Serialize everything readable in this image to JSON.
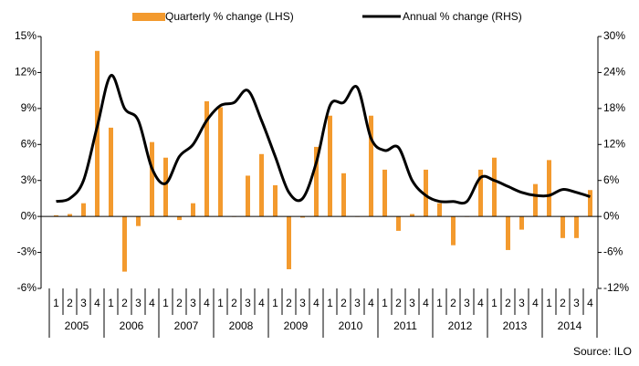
{
  "chart_data": {
    "type": "bar_line",
    "source": "Source: ILO",
    "categories": [
      "1",
      "2",
      "3",
      "4",
      "1",
      "2",
      "3",
      "4",
      "1",
      "2",
      "3",
      "4",
      "1",
      "2",
      "3",
      "4",
      "1",
      "2",
      "3",
      "4",
      "1",
      "2",
      "3",
      "4",
      "1",
      "2",
      "3",
      "4",
      "1",
      "2",
      "3",
      "4",
      "1",
      "2",
      "3",
      "4",
      "1",
      "2",
      "3",
      "4"
    ],
    "years": [
      "2005",
      "2006",
      "2007",
      "2008",
      "2009",
      "2010",
      "2011",
      "2012",
      "2013",
      "2014"
    ],
    "series": [
      {
        "name": "Quarterly % change (LHS)",
        "color": "#f39a2e",
        "kind": "bar",
        "values": [
          0.1,
          0.2,
          1.1,
          13.8,
          7.4,
          -4.6,
          -0.8,
          6.2,
          4.9,
          -0.3,
          1.1,
          9.6,
          9.1,
          0.0,
          3.4,
          5.2,
          2.6,
          -4.4,
          -0.1,
          5.8,
          8.4,
          3.6,
          0.0,
          8.4,
          3.9,
          -1.2,
          0.2,
          3.9,
          1.1,
          -2.4,
          0.0,
          3.9,
          4.9,
          -2.8,
          -1.1,
          2.7,
          4.7,
          -1.8,
          -1.8,
          2.2
        ]
      },
      {
        "name": "Annual % change (RHS)",
        "color": "#000000",
        "kind": "line",
        "axis": "y2",
        "values": [
          2.5,
          3,
          6,
          15,
          23.5,
          18,
          16,
          8,
          5.5,
          10,
          12,
          16,
          18.5,
          19,
          21,
          16,
          10,
          4,
          3,
          9,
          18.5,
          19,
          21.5,
          13,
          11,
          11.5,
          6,
          3.5,
          2.5,
          2.5,
          2.5,
          6.5,
          6,
          5,
          4,
          3.5,
          3.5,
          4.5,
          4,
          3.3
        ]
      }
    ],
    "ylim": [
      -6,
      15
    ],
    "yticks": [
      {
        "value": -6,
        "label": "-6%"
      },
      {
        "value": -3,
        "label": "-3%"
      },
      {
        "value": 0,
        "label": "0%"
      },
      {
        "value": 3,
        "label": "3%"
      },
      {
        "value": 6,
        "label": "6%"
      },
      {
        "value": 9,
        "label": "9%"
      },
      {
        "value": 12,
        "label": "12%"
      },
      {
        "value": 15,
        "label": "15%"
      }
    ],
    "y2lim": [
      -12,
      30
    ],
    "y2ticks": [
      {
        "value": -12,
        "label": "-12%"
      },
      {
        "value": -6,
        "label": "-6%"
      },
      {
        "value": 0,
        "label": "0%"
      },
      {
        "value": 6,
        "label": "6%"
      },
      {
        "value": 12,
        "label": "12%"
      },
      {
        "value": 18,
        "label": "18%"
      },
      {
        "value": 24,
        "label": "24%"
      },
      {
        "value": 30,
        "label": "30%"
      }
    ],
    "legend": "top"
  }
}
